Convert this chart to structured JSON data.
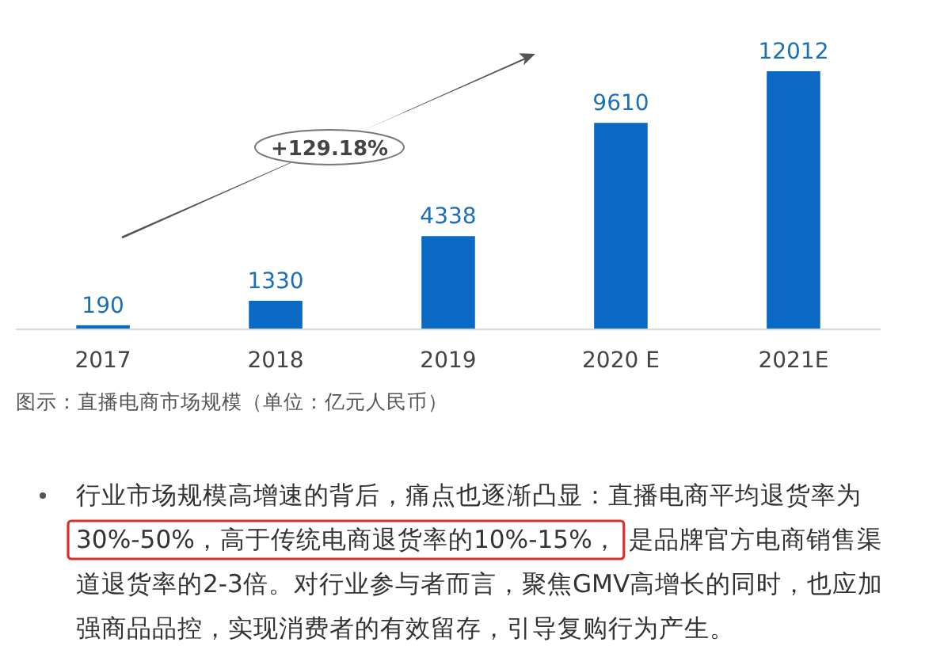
{
  "chart_data": {
    "type": "bar",
    "categories": [
      "2017",
      "2018",
      "2019",
      "2020 E",
      "2021E"
    ],
    "values": [
      190,
      1330,
      4338,
      9610,
      12012
    ],
    "color": "#0a6ac3",
    "data_labels": true,
    "annotations": [
      "+129.18%",
      "图示：直播电商市场规模（单位：亿元人民币）",
      "行业市场规模高增速的背后，痛点也逐渐凸显：直播电商平均退货率为",
      "30%-50%，高于传统电商退货率的10%-15%，",
      "是品牌官方电商销售渠道退货率的2-3倍。对行业参与者而言，聚焦GMV高增长的同时，也应加强商品品控，实现消费者的有效留存，引导复购行为产生。"
    ]
  }
}
